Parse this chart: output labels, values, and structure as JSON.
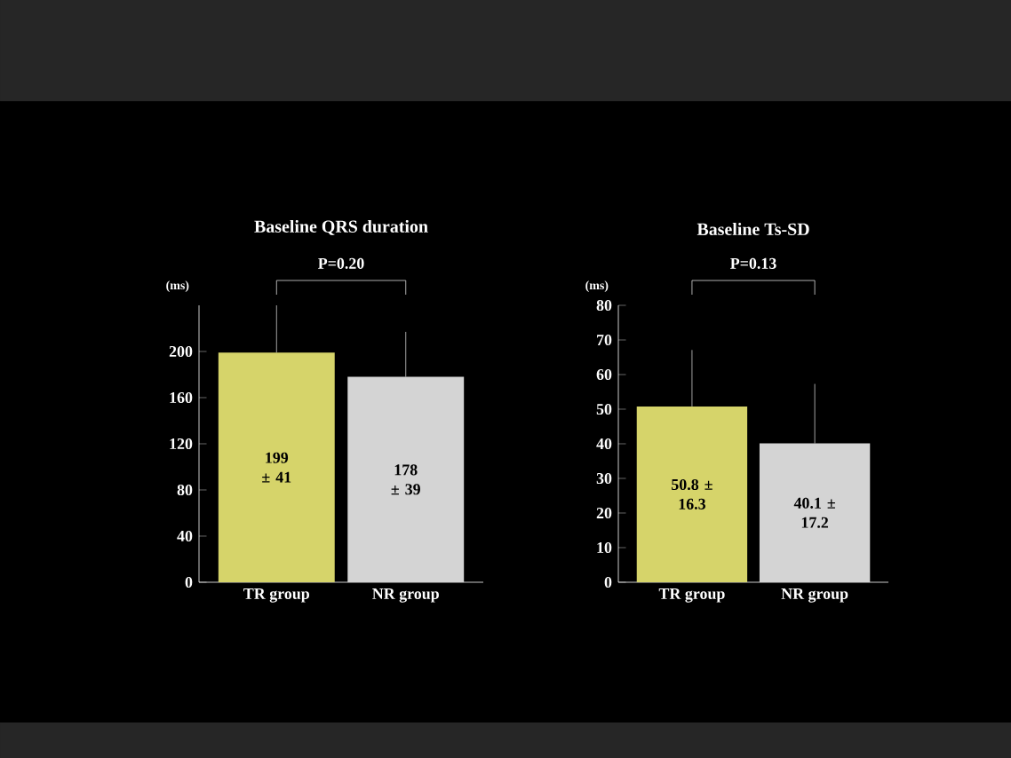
{
  "chart_data": [
    {
      "type": "bar",
      "title": "Baseline QRS duration",
      "ylabel": "(ms)",
      "categories": [
        "TR group",
        "NR group"
      ],
      "values": [
        199,
        178
      ],
      "colors": [
        "#d6d46a",
        "#d4d4d4"
      ],
      "errors": [
        [
          199,
          240
        ],
        [
          178,
          217
        ]
      ],
      "value_labels": [
        "199 ± 41",
        "178 ± 39"
      ],
      "ylim": [
        0,
        240
      ],
      "yticks": [
        0,
        40,
        80,
        120,
        160,
        200
      ],
      "annotations": [
        "P=0.20"
      ]
    },
    {
      "type": "bar",
      "title": "Baseline Ts-SD",
      "ylabel": "(ms)",
      "categories": [
        "TR group",
        "NR group"
      ],
      "values": [
        50.8,
        40.1
      ],
      "colors": [
        "#d6d46a",
        "#d4d4d4"
      ],
      "errors": [
        [
          50.8,
          67.1
        ],
        [
          40.1,
          57.3
        ]
      ],
      "value_labels": [
        "50.8 ± 16.3",
        "40.1 ± 17.2"
      ],
      "ylim": [
        0,
        80
      ],
      "yticks": [
        0,
        10,
        20,
        30,
        40,
        50,
        60,
        70,
        80
      ],
      "annotations": [
        "P=0.13"
      ]
    }
  ]
}
